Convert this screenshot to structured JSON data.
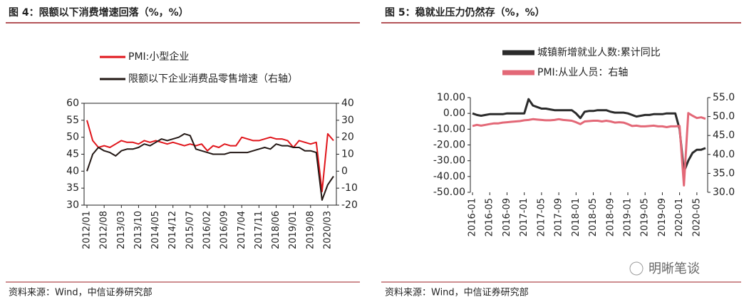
{
  "chart_data": [
    {
      "type": "line",
      "title": "图 4：限额以下消费增速回落（%，%）",
      "source": "资料来源：Wind，中信证券研究部",
      "categories": [
        "2012/01",
        null,
        null,
        "2012/08",
        null,
        null,
        "2013/03",
        null,
        null,
        "2013/10",
        null,
        null,
        "2014/05",
        null,
        null,
        "2014/12",
        null,
        null,
        "2015/07",
        null,
        null,
        "2016/02",
        null,
        null,
        "2016/09",
        null,
        null,
        "2017/04",
        null,
        null,
        "2017/11",
        null,
        null,
        "2018/06",
        null,
        null,
        "2019/01",
        null,
        null,
        "2019/08",
        null,
        null,
        "2020/03",
        null
      ],
      "series": [
        {
          "name": "PMI:小型企业",
          "color": "#e0151b",
          "values": [
            55,
            49,
            47,
            47.5,
            47,
            48,
            49,
            48.5,
            48.5,
            48,
            49,
            48.5,
            49,
            48.5,
            48,
            48.5,
            48,
            47.5,
            48,
            47.5,
            48,
            46,
            47.5,
            47,
            48,
            47.5,
            47.5,
            50,
            49.5,
            49,
            49,
            49.5,
            50,
            49.5,
            49.5,
            49,
            47,
            49,
            48.5,
            48,
            48.5,
            34,
            51,
            49
          ]
        },
        {
          "name": "限额以下企业消费品零售增速（右轴）",
          "color": "#231815",
          "axis": "y2",
          "values": [
            0,
            10,
            14,
            12,
            11,
            9,
            12,
            13,
            13,
            14,
            16,
            15,
            17,
            19,
            18,
            19,
            20,
            22,
            21,
            13,
            12,
            11,
            10,
            10,
            10,
            11,
            11,
            11,
            11,
            12,
            13,
            14,
            13,
            16,
            15,
            15,
            14,
            14,
            12,
            12,
            11,
            -17,
            -8,
            -3
          ]
        }
      ],
      "ylim": [
        30,
        60
      ],
      "yticks": [
        30,
        35,
        40,
        45,
        50,
        55,
        60
      ],
      "y2lim": [
        -20,
        40
      ],
      "y2ticks": [
        -20,
        -10,
        0,
        10,
        20,
        30,
        40
      ]
    },
    {
      "type": "line",
      "title": "图 5：稳就业压力仍然存（%，%）",
      "source": "资料来源：Wind，中信证券研究部",
      "watermark": "明晰笔谈",
      "categories": [
        "2016-01",
        null,
        null,
        null,
        "2016-05",
        null,
        null,
        null,
        "2016-09",
        null,
        null,
        null,
        "2017-01",
        null,
        null,
        null,
        "2017-05",
        null,
        null,
        null,
        "2017-09",
        null,
        null,
        null,
        "2018-01",
        null,
        null,
        null,
        "2018-05",
        null,
        null,
        null,
        "2018-09",
        null,
        null,
        null,
        "2019-01",
        null,
        null,
        null,
        "2019-05",
        null,
        null,
        null,
        "2019-09",
        null,
        null,
        null,
        "2020-01",
        null,
        null,
        null,
        "2020-05",
        null,
        null
      ],
      "series": [
        {
          "name": "城镇新增就业人数:累计同比",
          "color": "#2b2b2b",
          "values": [
            0,
            -1,
            -1.5,
            -1,
            -0.5,
            -0.5,
            -0.5,
            -0.5,
            0,
            0,
            0,
            0,
            0,
            9,
            5,
            4,
            3,
            3,
            2.5,
            2,
            2,
            2,
            2,
            2,
            0,
            -3,
            1,
            1.5,
            1.5,
            2,
            2,
            2,
            1,
            0.5,
            0.5,
            0.5,
            0,
            -1,
            -2,
            -1.5,
            -1,
            -1,
            -0.5,
            -0.5,
            -0.5,
            0,
            0,
            0,
            -10,
            -37,
            -30,
            -25,
            -23,
            -23,
            -22
          ]
        },
        {
          "name": "PMI:从业人员：右轴",
          "color": "#e36877",
          "axis": "y2",
          "values": [
            47.5,
            47.8,
            47.6,
            47.8,
            48,
            48.2,
            48.2,
            48.4,
            48.5,
            48.6,
            48.7,
            48.8,
            49,
            49.1,
            49.3,
            49.2,
            49.1,
            49,
            49,
            49.1,
            49.3,
            49.1,
            49,
            48.9,
            48.5,
            48,
            48.7,
            48.8,
            48.9,
            48.9,
            48.7,
            48.9,
            48.7,
            48.4,
            48.5,
            48.4,
            48,
            47.5,
            47.6,
            47.4,
            47.4,
            47.5,
            47.6,
            47.4,
            47.4,
            47.2,
            47.4,
            47.4,
            47.5,
            31.8,
            50.9,
            50.2,
            49.6,
            49.8,
            49.4
          ]
        }
      ],
      "ylim": [
        -50,
        10
      ],
      "yticks": [
        {
          "value": -50,
          "label": "-50.00"
        },
        {
          "value": -40,
          "label": "-40.00"
        },
        {
          "value": -30,
          "label": "-30.00"
        },
        {
          "value": -20,
          "label": "-20.00"
        },
        {
          "value": -10,
          "label": "-10.00"
        },
        {
          "value": 0,
          "label": "0.00"
        },
        {
          "value": 10,
          "label": "10.00"
        }
      ],
      "y2lim": [
        30,
        55
      ],
      "y2ticks": [
        {
          "value": 30,
          "label": "30.0"
        },
        {
          "value": 35,
          "label": "35.0"
        },
        {
          "value": 40,
          "label": "40.0"
        },
        {
          "value": 45,
          "label": "45.0"
        },
        {
          "value": 50,
          "label": "50.0"
        },
        {
          "value": 55,
          "label": "55.0"
        }
      ]
    }
  ]
}
